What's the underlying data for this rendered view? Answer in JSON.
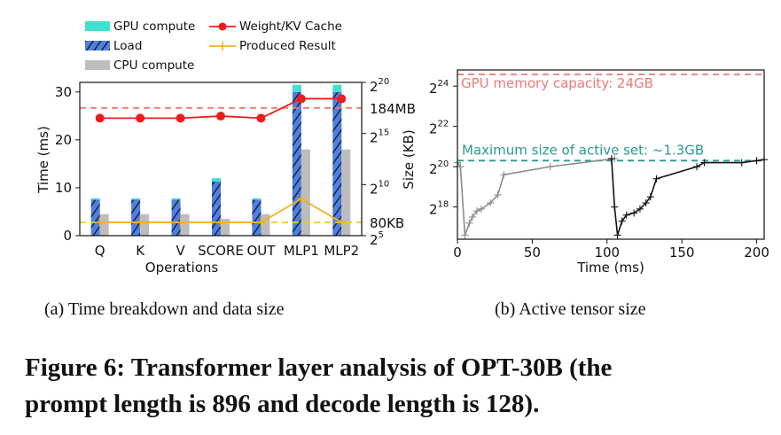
{
  "figure": {
    "caption_line1": "Figure 6: Transformer layer analysis of OPT-30B (the",
    "caption_line2": "prompt length is 896 and decode length is 128)."
  },
  "colors": {
    "gpu_compute": "#40e0d0",
    "load": "#4f7fe0",
    "cpu_compute": "#bdbdbd",
    "weight_kv": "#ee1c1c",
    "produced": "#f5b21c",
    "gpu_capacity_line": "#ee7777",
    "active_max_line": "#2a9a8f",
    "series_gray": "#8c8c8c",
    "series_black": "#111111"
  },
  "chart_data": [
    {
      "type": "bar",
      "subcaption": "(a)  Time breakdown and data size",
      "categories": [
        "Q",
        "K",
        "V",
        "SCORE",
        "OUT",
        "MLP1",
        "MLP2"
      ],
      "xlabel": "Operations",
      "ylabel": "Time (ms)",
      "ylim": [
        0,
        32
      ],
      "yticks": [
        0,
        10,
        20,
        30
      ],
      "y2label": "Size (KB)",
      "y2_log2_range": [
        5,
        20
      ],
      "y2ticks": [
        {
          "exp": 20,
          "label": "2",
          "sup": "20"
        },
        {
          "exp": 15,
          "label": "2",
          "sup": "15"
        },
        {
          "exp": 10,
          "label": "2",
          "sup": "10"
        },
        {
          "exp": 5,
          "label": "2",
          "sup": "5"
        }
      ],
      "series": [
        {
          "name": "GPU compute",
          "values": [
            0.3,
            0.3,
            0.3,
            0.7,
            0.3,
            1.5,
            1.5
          ]
        },
        {
          "name": "Load",
          "values": [
            7.5,
            7.5,
            7.5,
            11.3,
            7.5,
            30.0,
            30.0
          ]
        },
        {
          "name": "CPU compute",
          "values": [
            4.5,
            4.5,
            4.5,
            3.5,
            4.5,
            18.0,
            18.0
          ]
        },
        {
          "name": "Weight/KV Cache",
          "log2_kb": [
            16.5,
            16.5,
            16.5,
            16.7,
            16.5,
            18.4,
            18.4
          ]
        },
        {
          "name": "Produced Result",
          "log2_kb": [
            6.3,
            6.3,
            6.3,
            6.3,
            6.3,
            8.6,
            6.3
          ]
        }
      ],
      "ref_lines": [
        {
          "label": "184MB",
          "log2_kb": 17.5
        },
        {
          "label": "80KB",
          "log2_kb": 6.3
        }
      ],
      "legend_placement": "top"
    },
    {
      "type": "line",
      "subcaption": "(b)  Active tensor size",
      "xlabel": "Time (ms)",
      "xlim": [
        0,
        205
      ],
      "xticks": [
        0,
        50,
        100,
        150,
        200
      ],
      "ylog2_range": [
        16.4,
        24.8
      ],
      "yticks": [
        {
          "exp": 24,
          "label": "2",
          "sup": "24"
        },
        {
          "exp": 22,
          "label": "2",
          "sup": "22"
        },
        {
          "exp": 20,
          "label": "2",
          "sup": "20"
        },
        {
          "exp": 18,
          "label": "2",
          "sup": "18"
        }
      ],
      "annotations": [
        {
          "text": "GPU memory capacity: 24GB",
          "log2_kb": 24.58
        },
        {
          "text": "Maximum size of active set: ~1.3GB",
          "log2_kb": 20.3
        }
      ],
      "series": [
        {
          "x": [
            0,
            2,
            5,
            8,
            10,
            13,
            16,
            22,
            27,
            31,
            62,
            105
          ],
          "log2_kb": [
            20.2,
            20.0,
            16.6,
            17.2,
            17.5,
            17.8,
            17.9,
            18.2,
            18.6,
            19.6,
            20.0,
            20.4
          ]
        },
        {
          "x": [
            103,
            105,
            107,
            110,
            113,
            118,
            122,
            126,
            129,
            133,
            160,
            165,
            190,
            200,
            205
          ],
          "log2_kb": [
            20.4,
            18.0,
            16.6,
            17.3,
            17.6,
            17.7,
            17.9,
            18.2,
            18.5,
            19.4,
            20.0,
            20.2,
            20.2,
            20.3,
            20.35
          ]
        }
      ]
    }
  ]
}
